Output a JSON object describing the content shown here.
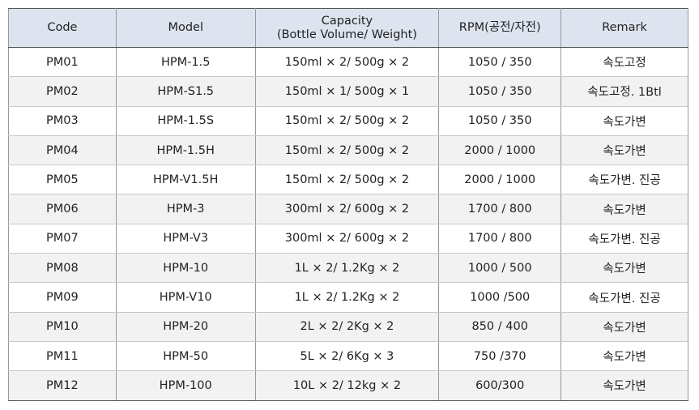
{
  "table": {
    "header": [
      "Code",
      "Model",
      "Capacity\n(Bottle Volume/ Weight)",
      "RPM(공전/자전)",
      "Remark"
    ],
    "rows": [
      [
        "PM01",
        "HPM-1.5",
        "150ml × 2/ 500g × 2",
        "1050 / 350",
        "속도고정"
      ],
      [
        "PM02",
        "HPM-S1.5",
        "150ml × 1/ 500g × 1",
        "1050 / 350",
        "속도고정. 1Btl"
      ],
      [
        "PM03",
        "HPM-1.5S",
        "150ml × 2/ 500g × 2",
        "1050 / 350",
        "속도가변"
      ],
      [
        "PM04",
        "HPM-1.5H",
        "150ml × 2/ 500g × 2",
        "2000 / 1000",
        "속도가변"
      ],
      [
        "PM05",
        "HPM-V1.5H",
        "150ml × 2/ 500g × 2",
        "2000 / 1000",
        "속도가변. 진공"
      ],
      [
        "PM06",
        "HPM-3",
        "300ml × 2/ 600g × 2",
        "1700 / 800",
        "속도가변"
      ],
      [
        "PM07",
        "HPM-V3",
        "300ml × 2/ 600g × 2",
        "1700 / 800",
        "속도가변. 진공"
      ],
      [
        "PM08",
        "HPM-10",
        "1L × 2/ 1.2Kg × 2",
        "1000 / 500",
        "속도가변"
      ],
      [
        "PM09",
        "HPM-V10",
        "1L × 2/ 1.2Kg × 2",
        "1000 /500",
        "속도가변. 진공"
      ],
      [
        "PM10",
        "HPM-20",
        "2L × 2/ 2Kg × 2",
        "850 / 400",
        "속도가변"
      ],
      [
        "PM11",
        "HPM-50",
        "5L × 2/ 6Kg × 3",
        "750 /370",
        "속도가변"
      ],
      [
        "PM12",
        "HPM-100",
        "10L × 2/ 12kg × 2",
        "600/300",
        "속도가변"
      ]
    ]
  }
}
